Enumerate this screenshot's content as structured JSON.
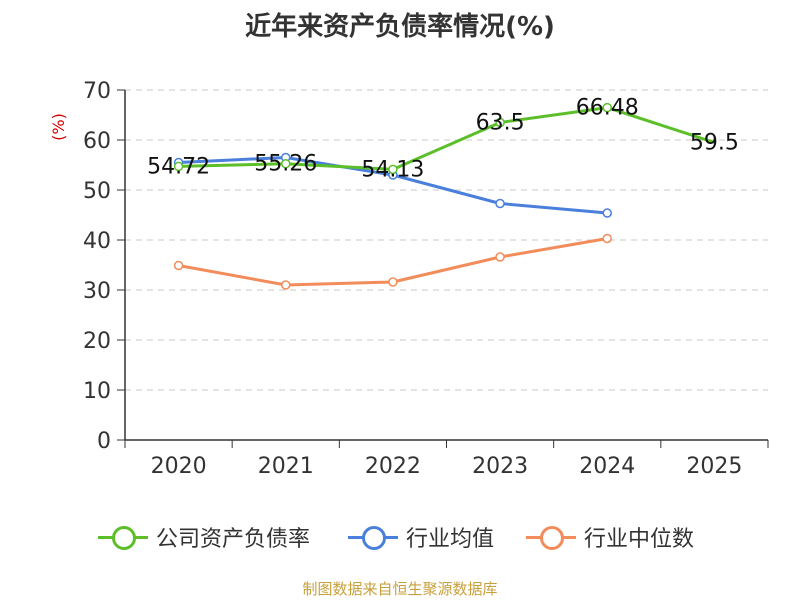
{
  "chart_data": {
    "type": "line",
    "title": "近年来资产负债率情况(%)",
    "ylabel": "(%)",
    "categories": [
      "2020",
      "2021",
      "2022",
      "2023",
      "2024",
      "2025"
    ],
    "ylim": [
      0,
      70
    ],
    "yticks": [
      "0",
      "10",
      "20",
      "30",
      "40",
      "50",
      "60",
      "70"
    ],
    "grid": true,
    "legend": "bottom",
    "series": [
      {
        "name": "公司资产负债率",
        "color": "#5cbf2a",
        "values": [
          54.72,
          55.26,
          54.13,
          63.5,
          66.48,
          59.5
        ],
        "labels": [
          "54.72",
          "55.26",
          "54.13",
          "63.5",
          "66.48",
          "59.5"
        ]
      },
      {
        "name": "行业均值",
        "color": "#4a7fdc",
        "values": [
          55.5,
          56.5,
          53.0,
          47.3,
          45.4,
          null
        ]
      },
      {
        "name": "行业中位数",
        "color": "#f28c5a",
        "values": [
          34.9,
          31.0,
          31.6,
          36.6,
          40.3,
          null
        ]
      }
    ]
  },
  "source": "制图数据来自恒生聚源数据库"
}
